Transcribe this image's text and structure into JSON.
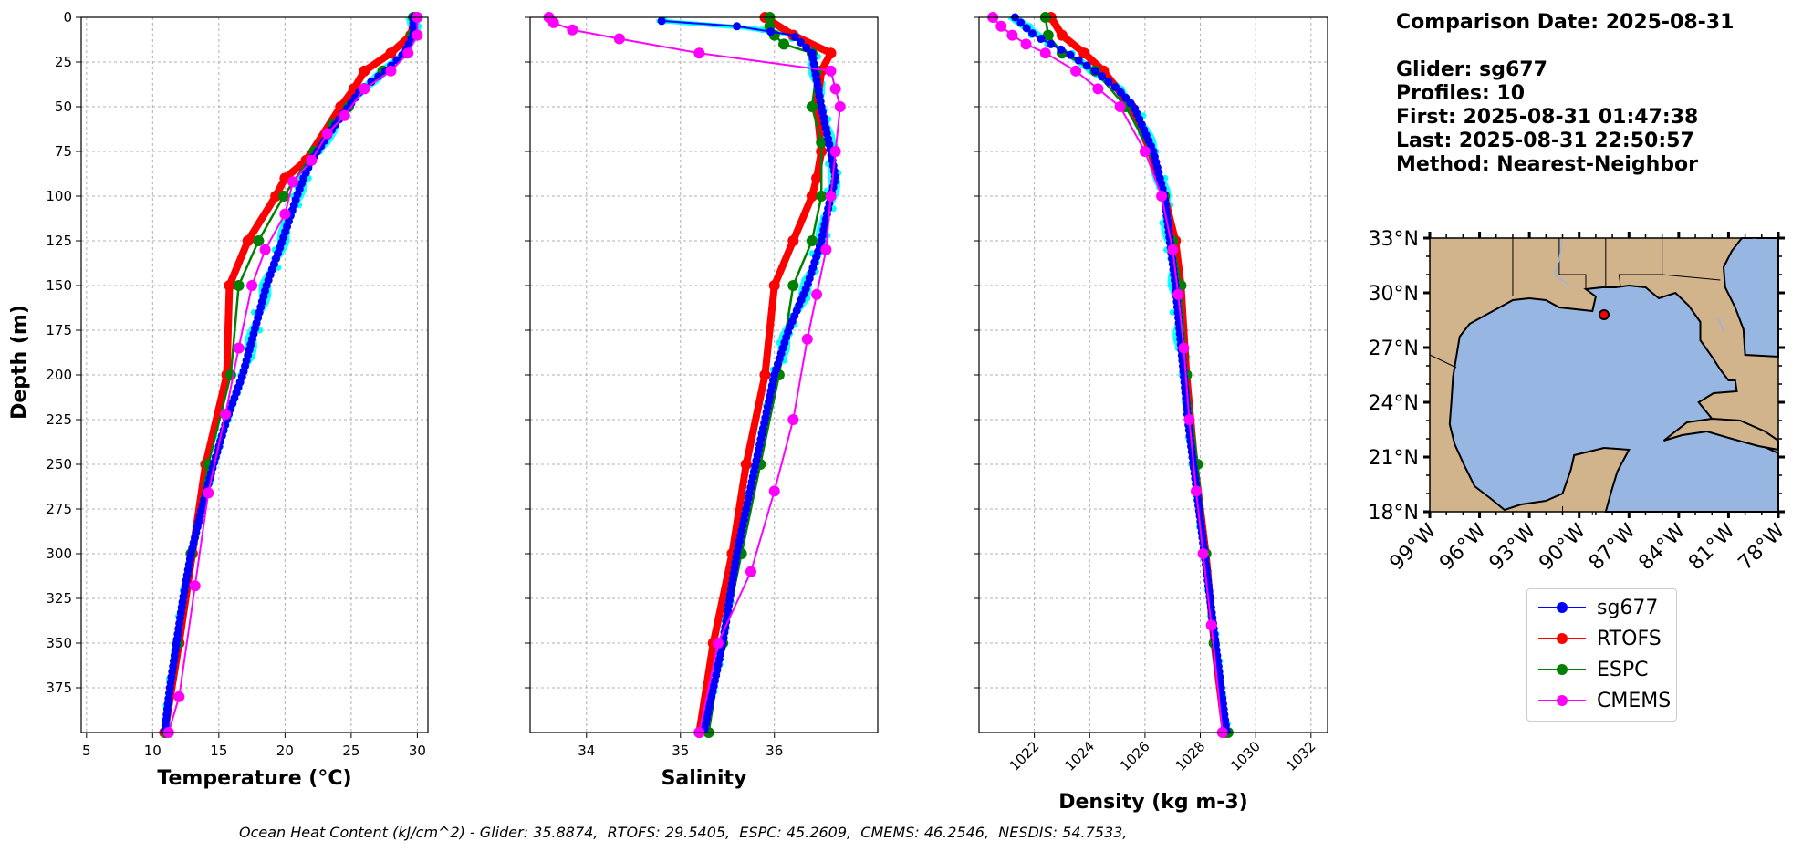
{
  "colors": {
    "sg677": "#0000ff",
    "RTOFS": "#ff0000",
    "ESPC": "#008000",
    "CMEMS": "#ff00ff",
    "glider_profiles": "#00ffff",
    "ocean": "#97b6e1",
    "land": "#d2b48c"
  },
  "info": {
    "comparison_date": "Comparison Date: 2025-08-31",
    "glider": "Glider: sg677",
    "profiles": "Profiles: 10",
    "first": "First: 2025-08-31 01:47:38",
    "last": "Last: 2025-08-31 22:50:57",
    "method": "Method: Nearest-Neighbor"
  },
  "legend": {
    "entries": [
      {
        "label": "sg677",
        "color": "#0000ff"
      },
      {
        "label": "RTOFS",
        "color": "#ff0000"
      },
      {
        "label": "ESPC",
        "color": "#008000"
      },
      {
        "label": "CMEMS",
        "color": "#ff00ff"
      }
    ]
  },
  "footer": "Ocean Heat Content (kJ/cm^2) - Glider: 35.8874,  RTOFS: 29.5405,  ESPC: 45.2609,  CMEMS: 46.2546,  NESDIS: 54.7533,",
  "map": {
    "lat_ticks": [
      {
        "v": 33,
        "label": "33°N"
      },
      {
        "v": 30,
        "label": "30°N"
      },
      {
        "v": 27,
        "label": "27°N"
      },
      {
        "v": 24,
        "label": "24°N"
      },
      {
        "v": 21,
        "label": "21°N"
      },
      {
        "v": 18,
        "label": "18°N"
      }
    ],
    "lon_ticks": [
      {
        "v": -99,
        "label": "99°W"
      },
      {
        "v": -96,
        "label": "96°W"
      },
      {
        "v": -93,
        "label": "93°W"
      },
      {
        "v": -90,
        "label": "90°W"
      },
      {
        "v": -87,
        "label": "87°W"
      },
      {
        "v": -84,
        "label": "84°W"
      },
      {
        "v": -81,
        "label": "81°W"
      },
      {
        "v": -78,
        "label": "78°W"
      }
    ],
    "glider_location": {
      "lon": -88.5,
      "lat": 28.8
    },
    "extent": {
      "lon": [
        -99,
        -78
      ],
      "lat": [
        18,
        33
      ]
    }
  },
  "chart_data": [
    {
      "type": "line",
      "title": "",
      "xlabel": "Temperature (°C)",
      "ylabel": "Depth (m)",
      "xlim": [
        4.6,
        30.8
      ],
      "ylim": [
        400,
        0
      ],
      "xticks": [
        5,
        10,
        15,
        20,
        25,
        30
      ],
      "yticks": [
        0,
        25,
        50,
        75,
        100,
        125,
        150,
        175,
        200,
        225,
        250,
        275,
        300,
        325,
        350,
        375
      ],
      "series": [
        {
          "name": "sg677",
          "depth": [
            0,
            10,
            20,
            30,
            40,
            50,
            60,
            70,
            80,
            90,
            100,
            125,
            150,
            175,
            200,
            225,
            250,
            275,
            300,
            325,
            350,
            375,
            400
          ],
          "values": [
            29.7,
            29.7,
            29.0,
            27.6,
            25.8,
            24.8,
            23.8,
            22.9,
            22.0,
            21.4,
            20.9,
            19.8,
            18.6,
            17.7,
            16.8,
            15.6,
            14.6,
            13.7,
            12.9,
            12.3,
            11.8,
            11.3,
            10.9
          ]
        },
        {
          "name": "RTOFS",
          "depth": [
            0,
            10,
            20,
            30,
            40,
            50,
            80,
            90,
            100,
            125,
            150,
            200,
            250,
            300,
            350,
            400
          ],
          "values": [
            29.8,
            29.5,
            28.0,
            26.0,
            25.2,
            24.2,
            21.6,
            20.0,
            19.3,
            17.2,
            15.8,
            15.6,
            14.0,
            13.0,
            12.0,
            10.9
          ]
        },
        {
          "name": "ESPC",
          "depth": [
            0,
            10,
            20,
            30,
            50,
            60,
            75,
            100,
            125,
            150,
            200,
            250,
            300,
            350,
            400
          ],
          "values": [
            29.7,
            29.6,
            29.2,
            27.4,
            24.8,
            23.6,
            22.2,
            19.9,
            18.0,
            16.5,
            15.9,
            14.2,
            12.9,
            11.9,
            11.0
          ]
        },
        {
          "name": "CMEMS",
          "depth": [
            0,
            10,
            20,
            30,
            40,
            55,
            65,
            80,
            92,
            110,
            130,
            150,
            185,
            222,
            266,
            318,
            380,
            400
          ],
          "values": [
            30.0,
            30.0,
            29.3,
            28.0,
            26.0,
            24.5,
            23.2,
            22.0,
            20.6,
            20.0,
            18.5,
            17.5,
            16.5,
            15.5,
            14.2,
            13.2,
            12.0,
            11.2
          ]
        }
      ]
    },
    {
      "type": "line",
      "title": "",
      "xlabel": "Salinity",
      "xlim": [
        33.4,
        37.1
      ],
      "ylim": [
        400,
        0
      ],
      "xticks": [
        34,
        35,
        36
      ],
      "series": [
        {
          "name": "sg677",
          "depth": [
            2,
            5,
            10,
            20,
            50,
            75,
            90,
            100,
            125,
            150,
            175,
            200,
            250,
            300,
            350,
            400
          ],
          "values": [
            34.8,
            35.6,
            36.2,
            36.4,
            36.5,
            36.6,
            36.65,
            36.6,
            36.5,
            36.35,
            36.15,
            36.0,
            35.8,
            35.6,
            35.45,
            35.25
          ]
        },
        {
          "name": "RTOFS",
          "depth": [
            0,
            10,
            20,
            30,
            50,
            75,
            90,
            100,
            125,
            150,
            200,
            250,
            300,
            350,
            400
          ],
          "values": [
            35.9,
            36.2,
            36.6,
            36.5,
            36.45,
            36.5,
            36.45,
            36.4,
            36.2,
            36.0,
            35.9,
            35.7,
            35.55,
            35.35,
            35.2
          ]
        },
        {
          "name": "ESPC",
          "depth": [
            0,
            5,
            10,
            15,
            20,
            30,
            50,
            70,
            100,
            125,
            150,
            200,
            250,
            300,
            350,
            400
          ],
          "values": [
            35.95,
            35.95,
            36.0,
            36.1,
            36.4,
            36.45,
            36.4,
            36.5,
            36.5,
            36.4,
            36.2,
            36.05,
            35.85,
            35.65,
            35.45,
            35.3
          ]
        },
        {
          "name": "CMEMS",
          "depth": [
            0,
            3,
            7,
            12,
            20,
            30,
            40,
            50,
            75,
            100,
            130,
            155,
            180,
            225,
            265,
            310,
            350,
            400
          ],
          "values": [
            33.6,
            33.65,
            33.85,
            34.35,
            35.2,
            36.6,
            36.65,
            36.7,
            36.65,
            36.6,
            36.55,
            36.45,
            36.35,
            36.2,
            36.0,
            35.75,
            35.4,
            35.2
          ]
        }
      ]
    },
    {
      "type": "line",
      "title": "",
      "xlabel": "Density (kg m-3)",
      "xlim": [
        1020.0,
        1032.6
      ],
      "ylim": [
        400,
        0
      ],
      "xticks": [
        1022,
        1024,
        1026,
        1028,
        1030,
        1032
      ],
      "series": [
        {
          "name": "sg677",
          "depth": [
            0,
            10,
            20,
            30,
            40,
            50,
            75,
            100,
            125,
            150,
            175,
            200,
            225,
            250,
            275,
            300,
            325,
            350,
            375,
            400
          ],
          "values": [
            1021.3,
            1022.0,
            1023.2,
            1024.2,
            1025.0,
            1025.6,
            1026.3,
            1026.7,
            1026.9,
            1027.1,
            1027.25,
            1027.4,
            1027.55,
            1027.75,
            1027.95,
            1028.15,
            1028.35,
            1028.55,
            1028.75,
            1028.95
          ]
        },
        {
          "name": "RTOFS",
          "depth": [
            0,
            10,
            20,
            30,
            50,
            75,
            100,
            125,
            150,
            200,
            250,
            300,
            350,
            400
          ],
          "values": [
            1022.6,
            1023.0,
            1023.8,
            1024.5,
            1025.5,
            1026.2,
            1026.7,
            1027.1,
            1027.3,
            1027.5,
            1027.8,
            1028.2,
            1028.5,
            1028.9
          ]
        },
        {
          "name": "ESPC",
          "depth": [
            0,
            10,
            20,
            30,
            50,
            75,
            100,
            125,
            150,
            200,
            250,
            300,
            350,
            400
          ],
          "values": [
            1022.4,
            1022.5,
            1023.0,
            1024.2,
            1025.3,
            1026.2,
            1026.7,
            1027.0,
            1027.3,
            1027.5,
            1027.9,
            1028.2,
            1028.5,
            1029.0
          ]
        },
        {
          "name": "CMEMS",
          "depth": [
            0,
            5,
            10,
            15,
            20,
            30,
            40,
            50,
            75,
            100,
            130,
            155,
            185,
            225,
            265,
            300,
            340,
            400
          ],
          "values": [
            1020.5,
            1020.8,
            1021.2,
            1021.7,
            1022.4,
            1023.5,
            1024.3,
            1025.1,
            1026.0,
            1026.6,
            1027.0,
            1027.2,
            1027.4,
            1027.6,
            1027.85,
            1028.1,
            1028.4,
            1028.8
          ]
        }
      ]
    }
  ]
}
